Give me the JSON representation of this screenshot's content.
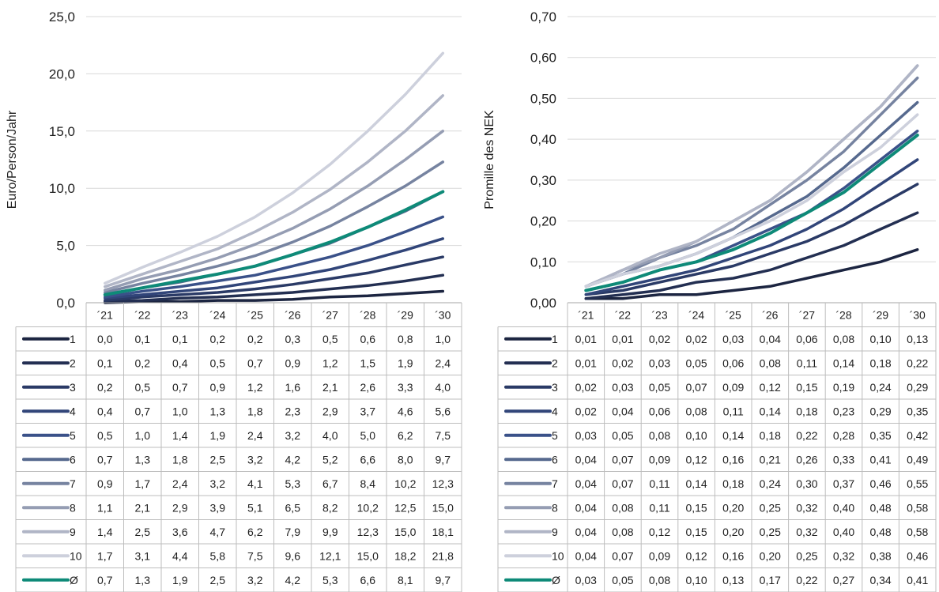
{
  "chart_data": [
    {
      "type": "line",
      "ylabel": "Euro/Person/Jahr",
      "ylim": [
        0,
        25
      ],
      "y_ticks": [
        "0,0",
        "5,0",
        "10,0",
        "15,0",
        "20,0",
        "25,0"
      ],
      "categories": [
        "´21",
        "´22",
        "´23",
        "´24",
        "´25",
        "´26",
        "´27",
        "´28",
        "´29",
        "´30"
      ],
      "grid": true,
      "legend": "table-below",
      "series": [
        {
          "name": "1",
          "color": "#1c2541",
          "values": [
            0.0,
            0.1,
            0.1,
            0.2,
            0.2,
            0.3,
            0.5,
            0.6,
            0.8,
            1.0
          ],
          "labels": [
            "0,0",
            "0,1",
            "0,1",
            "0,2",
            "0,2",
            "0,3",
            "0,5",
            "0,6",
            "0,8",
            "1,0"
          ]
        },
        {
          "name": "2",
          "color": "#232f52",
          "values": [
            0.1,
            0.2,
            0.4,
            0.5,
            0.7,
            0.9,
            1.2,
            1.5,
            1.9,
            2.4
          ],
          "labels": [
            "0,1",
            "0,2",
            "0,4",
            "0,5",
            "0,7",
            "0,9",
            "1,2",
            "1,5",
            "1,9",
            "2,4"
          ]
        },
        {
          "name": "3",
          "color": "#2a3a66",
          "values": [
            0.2,
            0.5,
            0.7,
            0.9,
            1.2,
            1.6,
            2.1,
            2.6,
            3.3,
            4.0
          ],
          "labels": [
            "0,2",
            "0,5",
            "0,7",
            "0,9",
            "1,2",
            "1,6",
            "2,1",
            "2,6",
            "3,3",
            "4,0"
          ]
        },
        {
          "name": "4",
          "color": "#314579",
          "values": [
            0.4,
            0.7,
            1.0,
            1.3,
            1.8,
            2.3,
            2.9,
            3.7,
            4.6,
            5.6
          ],
          "labels": [
            "0,4",
            "0,7",
            "1,0",
            "1,3",
            "1,8",
            "2,3",
            "2,9",
            "3,7",
            "4,6",
            "5,6"
          ]
        },
        {
          "name": "5",
          "color": "#3a5189",
          "values": [
            0.5,
            1.0,
            1.4,
            1.9,
            2.4,
            3.2,
            4.0,
            5.0,
            6.2,
            7.5
          ],
          "labels": [
            "0,5",
            "1,0",
            "1,4",
            "1,9",
            "2,4",
            "3,2",
            "4,0",
            "5,0",
            "6,2",
            "7,5"
          ]
        },
        {
          "name": "6",
          "color": "#56698e",
          "values": [
            0.7,
            1.3,
            1.8,
            2.5,
            3.2,
            4.2,
            5.2,
            6.6,
            8.0,
            9.7
          ],
          "labels": [
            "0,7",
            "1,3",
            "1,8",
            "2,5",
            "3,2",
            "4,2",
            "5,2",
            "6,6",
            "8,0",
            "9,7"
          ]
        },
        {
          "name": "7",
          "color": "#7683a0",
          "values": [
            0.9,
            1.7,
            2.4,
            3.2,
            4.1,
            5.3,
            6.7,
            8.4,
            10.2,
            12.3
          ],
          "labels": [
            "0,9",
            "1,7",
            "2,4",
            "3,2",
            "4,1",
            "5,3",
            "6,7",
            "8,4",
            "10,2",
            "12,3"
          ]
        },
        {
          "name": "8",
          "color": "#959db3",
          "values": [
            1.1,
            2.1,
            2.9,
            3.9,
            5.1,
            6.5,
            8.2,
            10.2,
            12.5,
            15.0
          ],
          "labels": [
            "1,1",
            "2,1",
            "2,9",
            "3,9",
            "5,1",
            "6,5",
            "8,2",
            "10,2",
            "12,5",
            "15,0"
          ]
        },
        {
          "name": "9",
          "color": "#b0b5c6",
          "values": [
            1.4,
            2.5,
            3.6,
            4.7,
            6.2,
            7.9,
            9.9,
            12.3,
            15.0,
            18.1
          ],
          "labels": [
            "1,4",
            "2,5",
            "3,6",
            "4,7",
            "6,2",
            "7,9",
            "9,9",
            "12,3",
            "15,0",
            "18,1"
          ]
        },
        {
          "name": "10",
          "color": "#cdd0dc",
          "values": [
            1.7,
            3.1,
            4.4,
            5.8,
            7.5,
            9.6,
            12.1,
            15.0,
            18.2,
            21.8
          ],
          "labels": [
            "1,7",
            "3,1",
            "4,4",
            "5,8",
            "7,5",
            "9,6",
            "12,1",
            "15,0",
            "18,2",
            "21,8"
          ]
        },
        {
          "name": "Ø",
          "color": "#0e8a78",
          "values": [
            0.7,
            1.3,
            1.9,
            2.5,
            3.2,
            4.2,
            5.3,
            6.6,
            8.1,
            9.7
          ],
          "labels": [
            "0,7",
            "1,3",
            "1,9",
            "2,5",
            "3,2",
            "4,2",
            "5,3",
            "6,6",
            "8,1",
            "9,7"
          ]
        }
      ]
    },
    {
      "type": "line",
      "ylabel": "Promille des NEK",
      "ylim": [
        0,
        0.7
      ],
      "y_ticks": [
        "0,00",
        "0,10",
        "0,20",
        "0,30",
        "0,40",
        "0,50",
        "0,60",
        "0,70"
      ],
      "categories": [
        "´21",
        "´22",
        "´23",
        "´24",
        "´25",
        "´26",
        "´27",
        "´28",
        "´29",
        "´30"
      ],
      "grid": true,
      "legend": "table-below",
      "series": [
        {
          "name": "1",
          "color": "#1c2541",
          "values": [
            0.01,
            0.01,
            0.02,
            0.02,
            0.03,
            0.04,
            0.06,
            0.08,
            0.1,
            0.13
          ],
          "labels": [
            "0,01",
            "0,01",
            "0,02",
            "0,02",
            "0,03",
            "0,04",
            "0,06",
            "0,08",
            "0,10",
            "0,13"
          ]
        },
        {
          "name": "2",
          "color": "#232f52",
          "values": [
            0.01,
            0.02,
            0.03,
            0.05,
            0.06,
            0.08,
            0.11,
            0.14,
            0.18,
            0.22
          ],
          "labels": [
            "0,01",
            "0,02",
            "0,03",
            "0,05",
            "0,06",
            "0,08",
            "0,11",
            "0,14",
            "0,18",
            "0,22"
          ]
        },
        {
          "name": "3",
          "color": "#2a3a66",
          "values": [
            0.02,
            0.03,
            0.05,
            0.07,
            0.09,
            0.12,
            0.15,
            0.19,
            0.24,
            0.29
          ],
          "labels": [
            "0,02",
            "0,03",
            "0,05",
            "0,07",
            "0,09",
            "0,12",
            "0,15",
            "0,19",
            "0,24",
            "0,29"
          ]
        },
        {
          "name": "4",
          "color": "#314579",
          "values": [
            0.02,
            0.04,
            0.06,
            0.08,
            0.11,
            0.14,
            0.18,
            0.23,
            0.29,
            0.35
          ],
          "labels": [
            "0,02",
            "0,04",
            "0,06",
            "0,08",
            "0,11",
            "0,14",
            "0,18",
            "0,23",
            "0,29",
            "0,35"
          ]
        },
        {
          "name": "5",
          "color": "#3a5189",
          "values": [
            0.03,
            0.05,
            0.08,
            0.1,
            0.14,
            0.18,
            0.22,
            0.28,
            0.35,
            0.42
          ],
          "labels": [
            "0,03",
            "0,05",
            "0,08",
            "0,10",
            "0,14",
            "0,18",
            "0,22",
            "0,28",
            "0,35",
            "0,42"
          ]
        },
        {
          "name": "6",
          "color": "#56698e",
          "values": [
            0.04,
            0.07,
            0.09,
            0.12,
            0.16,
            0.21,
            0.26,
            0.33,
            0.41,
            0.49
          ],
          "labels": [
            "0,04",
            "0,07",
            "0,09",
            "0,12",
            "0,16",
            "0,21",
            "0,26",
            "0,33",
            "0,41",
            "0,49"
          ]
        },
        {
          "name": "7",
          "color": "#7683a0",
          "values": [
            0.04,
            0.07,
            0.11,
            0.14,
            0.18,
            0.24,
            0.3,
            0.37,
            0.46,
            0.55
          ],
          "labels": [
            "0,04",
            "0,07",
            "0,11",
            "0,14",
            "0,18",
            "0,24",
            "0,30",
            "0,37",
            "0,46",
            "0,55"
          ]
        },
        {
          "name": "8",
          "color": "#959db3",
          "values": [
            0.04,
            0.08,
            0.11,
            0.15,
            0.2,
            0.25,
            0.32,
            0.4,
            0.48,
            0.58
          ],
          "labels": [
            "0,04",
            "0,08",
            "0,11",
            "0,15",
            "0,20",
            "0,25",
            "0,32",
            "0,40",
            "0,48",
            "0,58"
          ]
        },
        {
          "name": "9",
          "color": "#b0b5c6",
          "values": [
            0.04,
            0.08,
            0.12,
            0.15,
            0.2,
            0.25,
            0.32,
            0.4,
            0.48,
            0.58
          ],
          "labels": [
            "0,04",
            "0,08",
            "0,12",
            "0,15",
            "0,20",
            "0,25",
            "0,32",
            "0,40",
            "0,48",
            "0,58"
          ]
        },
        {
          "name": "10",
          "color": "#cdd0dc",
          "values": [
            0.04,
            0.07,
            0.09,
            0.12,
            0.16,
            0.2,
            0.25,
            0.32,
            0.38,
            0.46
          ],
          "labels": [
            "0,04",
            "0,07",
            "0,09",
            "0,12",
            "0,16",
            "0,20",
            "0,25",
            "0,32",
            "0,38",
            "0,46"
          ]
        },
        {
          "name": "Ø",
          "color": "#0e8a78",
          "values": [
            0.03,
            0.05,
            0.08,
            0.1,
            0.13,
            0.17,
            0.22,
            0.27,
            0.34,
            0.41
          ],
          "labels": [
            "0,03",
            "0,05",
            "0,08",
            "0,10",
            "0,13",
            "0,17",
            "0,22",
            "0,27",
            "0,34",
            "0,41"
          ]
        }
      ]
    }
  ]
}
